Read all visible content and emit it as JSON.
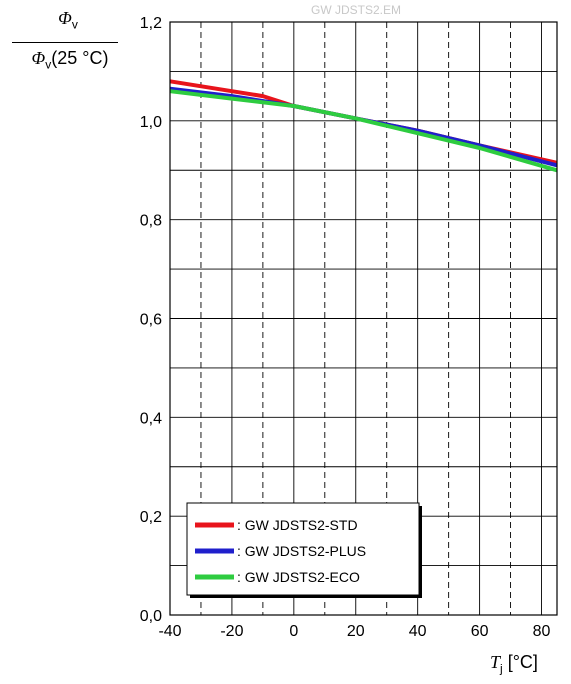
{
  "watermark": "GW JDSTS2.EM",
  "y_label": {
    "numerator_symbol": "Φ",
    "numerator_sub": "v",
    "denominator_symbol": "Φ",
    "denominator_sub": "v",
    "denominator_suffix": "(25 °C)"
  },
  "x_label": {
    "symbol": "T",
    "sub": "j",
    "unit": "[°C]"
  },
  "chart_data": {
    "type": "line",
    "xlim": [
      -40,
      85
    ],
    "ylim": [
      0.0,
      1.2
    ],
    "x_ticks": [
      -40,
      -20,
      0,
      20,
      40,
      60,
      80
    ],
    "x_tick_labels": [
      "-40",
      "-20",
      "0",
      "20",
      "40",
      "60",
      "80"
    ],
    "y_ticks": [
      0.0,
      0.2,
      0.4,
      0.6,
      0.8,
      1.0,
      1.2
    ],
    "y_tick_labels": [
      "0,0",
      "0,2",
      "0,4",
      "0,6",
      "0,8",
      "1,0",
      "1,2"
    ],
    "grid": true,
    "legend_position": "bottom-left",
    "series": [
      {
        "name": ": GW JDSTS2-STD",
        "color": "#e8141c",
        "x": [
          -40,
          -10,
          0,
          20,
          40,
          60,
          85
        ],
        "y": [
          1.08,
          1.05,
          1.03,
          1.005,
          0.98,
          0.95,
          0.915
        ]
      },
      {
        "name": ": GW JDSTS2-PLUS",
        "color": "#1f1fcc",
        "x": [
          -40,
          -20,
          0,
          20,
          40,
          60,
          85
        ],
        "y": [
          1.065,
          1.05,
          1.03,
          1.005,
          0.98,
          0.95,
          0.91
        ]
      },
      {
        "name": ": GW JDSTS2-ECO",
        "color": "#2ecc40",
        "x": [
          -40,
          -20,
          0,
          20,
          40,
          60,
          85
        ],
        "y": [
          1.06,
          1.045,
          1.03,
          1.005,
          0.975,
          0.945,
          0.9
        ]
      }
    ]
  }
}
